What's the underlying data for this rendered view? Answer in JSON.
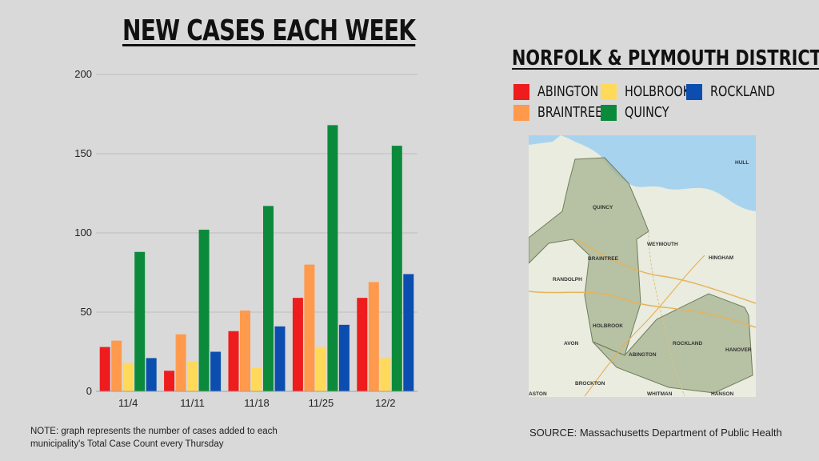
{
  "title": "NEW CASES EACH WEEK",
  "district": "NORFOLK & PLYMOUTH DISTRICT",
  "legend": [
    {
      "name": "ABINGTON",
      "color": "#ee1c1c"
    },
    {
      "name": "HOLBROOK",
      "color": "#ffd95a"
    },
    {
      "name": "ROCKLAND",
      "color": "#0b4eaf"
    },
    {
      "name": "BRAINTREE",
      "color": "#ff9a4d"
    },
    {
      "name": "QUINCY",
      "color": "#0c8a3b"
    }
  ],
  "chart_data": {
    "type": "bar",
    "categories": [
      "11/4",
      "11/11",
      "11/18",
      "11/25",
      "12/2"
    ],
    "ylim": [
      0,
      200
    ],
    "yticks": [
      0,
      50,
      100,
      150,
      200
    ],
    "grid": true,
    "legend_position": "top-right",
    "series": [
      {
        "name": "ABINGTON",
        "color": "#ee1c1c",
        "values": [
          28,
          13,
          38,
          59,
          59
        ]
      },
      {
        "name": "BRAINTREE",
        "color": "#ff9a4d",
        "values": [
          32,
          36,
          51,
          80,
          69
        ]
      },
      {
        "name": "HOLBROOK",
        "color": "#ffd95a",
        "values": [
          18,
          19,
          15,
          28,
          21
        ]
      },
      {
        "name": "QUINCY",
        "color": "#0c8a3b",
        "values": [
          88,
          102,
          117,
          168,
          155
        ]
      },
      {
        "name": "ROCKLAND",
        "color": "#0b4eaf",
        "values": [
          21,
          25,
          41,
          42,
          74
        ]
      }
    ]
  },
  "map": {
    "labels": [
      "QUINCY",
      "WEYMOUTH",
      "BRAINTREE",
      "RANDOLPH",
      "HINGHAM",
      "HOLBROOK",
      "ABINGTON",
      "ROCKLAND",
      "AVON",
      "HANOVER",
      "BROCKTON",
      "WHITMAN",
      "HANSON",
      "HULL",
      "ASTON"
    ]
  },
  "note": "NOTE: graph represents the number of cases added to each municipality's Total Case Count every Thursday",
  "source": "SOURCE: Massachusetts Department of Public Health"
}
